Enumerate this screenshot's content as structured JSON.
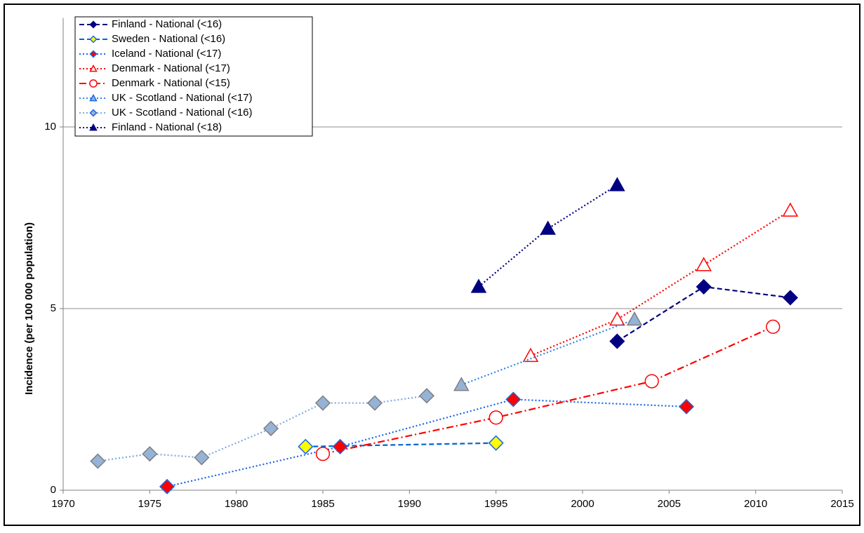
{
  "chart_data": {
    "type": "line",
    "y_label": "Incidence  (per 100 000 population)",
    "xlim": [
      1970,
      2015
    ],
    "xticks": [
      1970,
      1975,
      1980,
      1985,
      1990,
      1995,
      2000,
      2005,
      2010,
      2015
    ],
    "ylim": [
      0,
      13
    ],
    "yticks": [
      0,
      5,
      10
    ],
    "grid": true,
    "legend": "top-left",
    "series": [
      {
        "name": "Finland - National  (<16)",
        "color": "#000080",
        "dash": "dashed",
        "marker": "diamond",
        "marker_fill": "#000080",
        "x": [
          2002,
          2007,
          2012
        ],
        "values": [
          4.1,
          5.6,
          5.3
        ]
      },
      {
        "name": "Sweden - National  (<16)",
        "color": "#0066cc",
        "dash": "dashed",
        "marker": "diamond",
        "marker_fill": "#ffff00",
        "x": [
          1984,
          1995
        ],
        "values": [
          1.2,
          1.3
        ]
      },
      {
        "name": "Iceland - National  (<17)",
        "color": "#1a66e6",
        "dash": "dotted",
        "marker": "diamond",
        "marker_fill": "#ff0000",
        "x": [
          1976,
          1986,
          1996,
          2006
        ],
        "values": [
          0.1,
          1.2,
          2.5,
          2.3
        ]
      },
      {
        "name": "Denmark - National  (<17)",
        "color": "#ff0000",
        "dash": "dotted",
        "marker": "triangle",
        "marker_fill": "#ffffff",
        "x": [
          1997,
          2002,
          2007,
          2012
        ],
        "values": [
          3.7,
          4.7,
          6.2,
          7.7
        ]
      },
      {
        "name": "Denmark - National  (<15)",
        "color": "#ff0000",
        "dash": "dashdot",
        "marker": "circle",
        "marker_fill": "#ffffff",
        "x": [
          1985,
          1995,
          2004,
          2011
        ],
        "values": [
          1.0,
          2.0,
          3.0,
          4.5
        ]
      },
      {
        "name": "UK - Scotland - National  (<17)",
        "color": "#3385e6",
        "dash": "dotted",
        "marker": "triangle",
        "marker_fill": "#95b3d7",
        "x": [
          1993,
          2003
        ],
        "values": [
          2.9,
          4.7
        ]
      },
      {
        "name": "UK - Scotland - National  (<16)",
        "color": "#7fa8e0",
        "dash": "dotted",
        "marker": "diamond",
        "marker_fill": "#95b3d7",
        "x": [
          1972,
          1975,
          1978,
          1982,
          1985,
          1988,
          1991
        ],
        "values": [
          0.8,
          1.0,
          0.9,
          1.7,
          2.4,
          2.4,
          2.6
        ]
      },
      {
        "name": "Finland - National  (<18)",
        "color": "#000080",
        "dash": "dotted",
        "marker": "triangle",
        "marker_fill": "#000080",
        "x": [
          1994,
          1998,
          2002
        ],
        "values": [
          5.6,
          7.2,
          8.4
        ]
      }
    ]
  }
}
